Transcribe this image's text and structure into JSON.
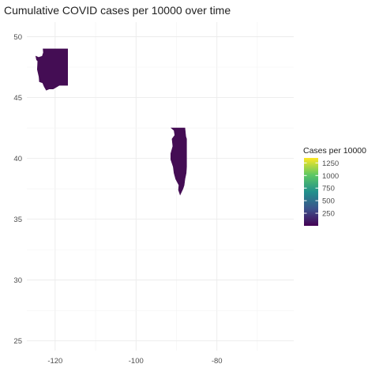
{
  "chart_data": {
    "type": "map",
    "title": "Cumulative COVID cases per 10000 over time",
    "xlabel": "",
    "ylabel": "",
    "xlim": [
      -127,
      -61
    ],
    "ylim": [
      24.2,
      51.2
    ],
    "x_ticks": [
      -120,
      -100,
      -80
    ],
    "x_tick_labels": [
      "-120",
      "-100",
      "-80"
    ],
    "y_ticks": [
      25,
      30,
      35,
      40,
      45,
      50
    ],
    "y_tick_labels": [
      "25",
      "30",
      "35",
      "40",
      "45",
      "50"
    ],
    "grid": true,
    "legend": {
      "title": "Cases per 10000",
      "position": "right",
      "range": [
        0,
        1350
      ],
      "breaks": [
        250,
        500,
        750,
        1000,
        1250
      ],
      "break_labels": [
        "250",
        "500",
        "750",
        "1000",
        "1250"
      ],
      "colors": [
        "#440154",
        "#3b528b",
        "#21908c",
        "#5dc863",
        "#fde725"
      ]
    },
    "regions": [
      {
        "value": 120,
        "fill": "#440d54",
        "outline": [
          [
            -124.8,
            48.4
          ],
          [
            -124.6,
            48.1
          ],
          [
            -124.3,
            48.0
          ],
          [
            -124.4,
            47.3
          ],
          [
            -124.0,
            46.7
          ],
          [
            -123.9,
            46.3
          ],
          [
            -123.1,
            46.2
          ],
          [
            -122.7,
            45.9
          ],
          [
            -122.2,
            45.6
          ],
          [
            -121.5,
            45.7
          ],
          [
            -120.5,
            45.7
          ],
          [
            -119.5,
            45.9
          ],
          [
            -119.0,
            46.0
          ],
          [
            -116.9,
            46.0
          ],
          [
            -116.9,
            49.0
          ],
          [
            -123.0,
            49.0
          ],
          [
            -122.9,
            48.7
          ],
          [
            -123.2,
            48.4
          ],
          [
            -124.1,
            48.3
          ]
        ]
      },
      {
        "value": 100,
        "fill": "#440d54",
        "outline": [
          [
            -91.3,
            42.5
          ],
          [
            -87.9,
            42.5
          ],
          [
            -87.7,
            41.8
          ],
          [
            -87.5,
            41.6
          ],
          [
            -87.5,
            39.3
          ],
          [
            -87.6,
            38.8
          ],
          [
            -87.9,
            38.3
          ],
          [
            -88.1,
            37.8
          ],
          [
            -88.4,
            37.5
          ],
          [
            -89.1,
            37.0
          ],
          [
            -89.2,
            37.1
          ],
          [
            -89.5,
            37.4
          ],
          [
            -89.4,
            37.8
          ],
          [
            -90.2,
            38.3
          ],
          [
            -90.6,
            38.8
          ],
          [
            -90.8,
            39.3
          ],
          [
            -91.4,
            39.9
          ],
          [
            -91.4,
            40.4
          ],
          [
            -90.9,
            41.0
          ],
          [
            -91.1,
            41.6
          ],
          [
            -90.4,
            41.9
          ],
          [
            -90.6,
            42.3
          ]
        ]
      }
    ]
  }
}
